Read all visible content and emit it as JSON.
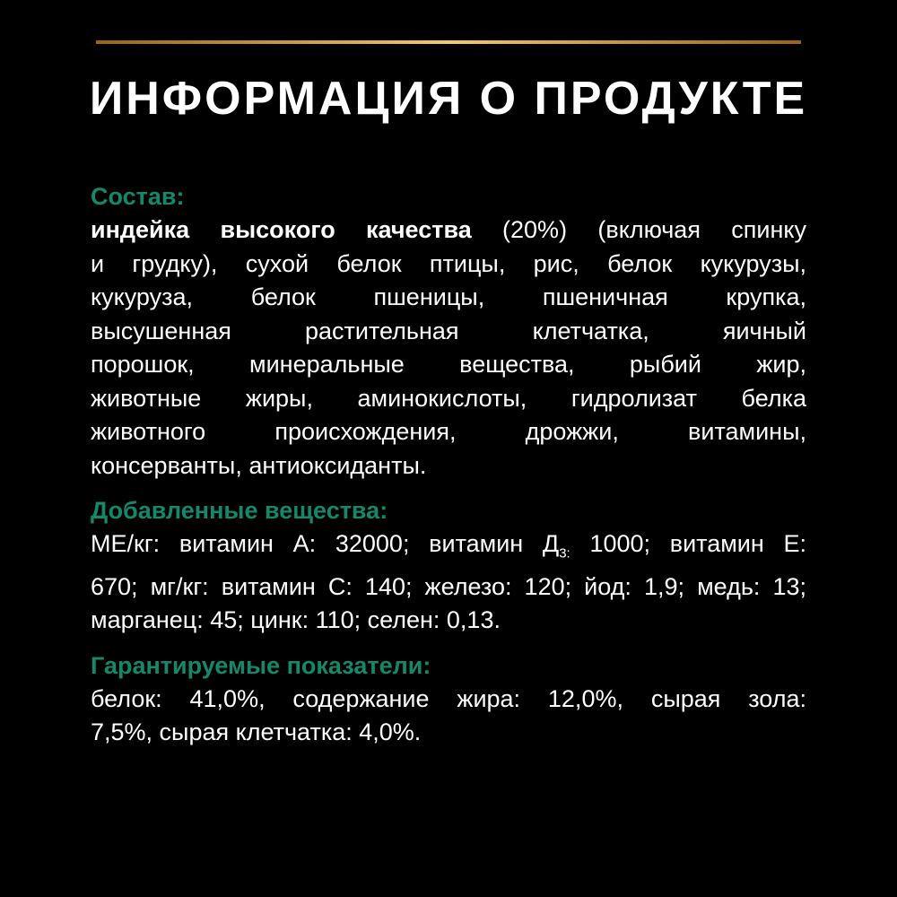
{
  "title": "ИНФОРМАЦИЯ О ПРОДУКТЕ",
  "colors": {
    "background": "#000000",
    "heading": "#15876b",
    "divider": "#f7c86a"
  },
  "composition": {
    "heading": "Состав:",
    "bold": "индейка высокого качества",
    "first_rest": " (20%) (включая спинку",
    "lines": [
      "и грудку), сухой белок птицы, рис, белок кукурузы,",
      "кукуруза, белок пшеницы, пшеничная крупка,",
      "высушенная растительная клетчатка, яичный",
      "порошок, минеральные вещества, рыбий жир,",
      "животные жиры, аминокислоты, гидролизат белка",
      "животного происхождения, дрожжи, витамины,",
      "консерванты, антиоксиданты."
    ]
  },
  "additives": {
    "heading": "Добавленные вещества:",
    "l1a": "МЕ/кг: витамин А: 32000; витамин Д",
    "l1sub": "3:",
    "l1b": " 1000; витамин Е:",
    "lines": [
      "670; мг/кг: витамин С: 140; железо: 120; йод: 1,9; медь: 13;",
      "марганец: 45; цинк: 110; селен: 0,13."
    ]
  },
  "guaranteed": {
    "heading": "Гарантируемые показатели:",
    "lines": [
      "белок: 41,0%, содержание жира: 12,0%, сырая зола:",
      "7,5%, сырая клетчатка: 4,0%."
    ]
  }
}
